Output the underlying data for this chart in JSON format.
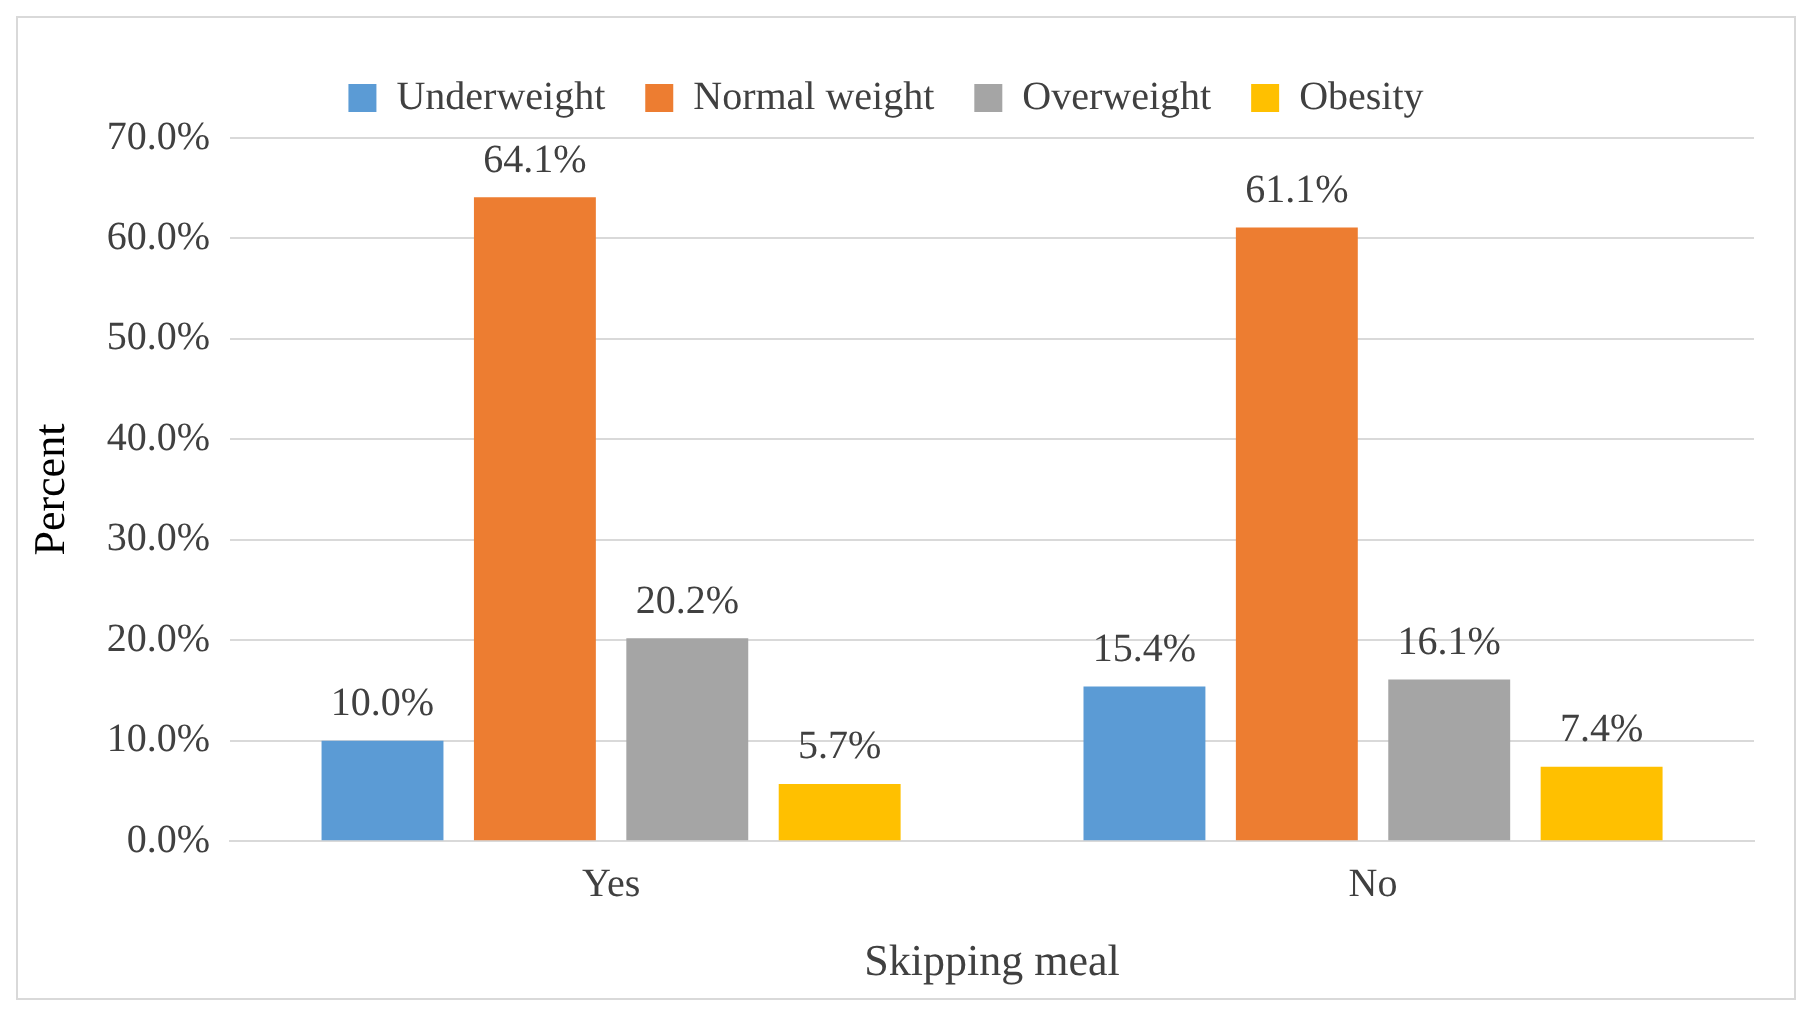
{
  "chart_data": {
    "type": "bar",
    "xlabel": "Skipping meal",
    "ylabel": "Percent",
    "categories": [
      "Yes",
      "No"
    ],
    "series": [
      {
        "name": "Underweight",
        "color": "#5b9bd5",
        "values": [
          10.0,
          15.4
        ],
        "value_labels": [
          "10.0%",
          "15.4%"
        ]
      },
      {
        "name": "Normal weight",
        "color": "#ed7d31",
        "values": [
          64.1,
          61.1
        ],
        "value_labels": [
          "64.1%",
          "61.1%"
        ]
      },
      {
        "name": "Overweight",
        "color": "#a5a5a5",
        "values": [
          20.2,
          16.1
        ],
        "value_labels": [
          "20.2%",
          "16.1%"
        ]
      },
      {
        "name": "Obesity",
        "color": "#ffc000",
        "values": [
          5.7,
          7.4
        ],
        "value_labels": [
          "5.7%",
          "7.4%"
        ]
      }
    ],
    "ylim": [
      0,
      70
    ],
    "yticks": [
      {
        "value": 0,
        "label": "0.0%"
      },
      {
        "value": 10,
        "label": "10.0%"
      },
      {
        "value": 20,
        "label": "20.0%"
      },
      {
        "value": 30,
        "label": "30.0%"
      },
      {
        "value": 40,
        "label": "40.0%"
      },
      {
        "value": 50,
        "label": "50.0%"
      },
      {
        "value": 60,
        "label": "60.0%"
      },
      {
        "value": 70,
        "label": "70.0%"
      }
    ],
    "grid": "y",
    "legend": "top"
  }
}
